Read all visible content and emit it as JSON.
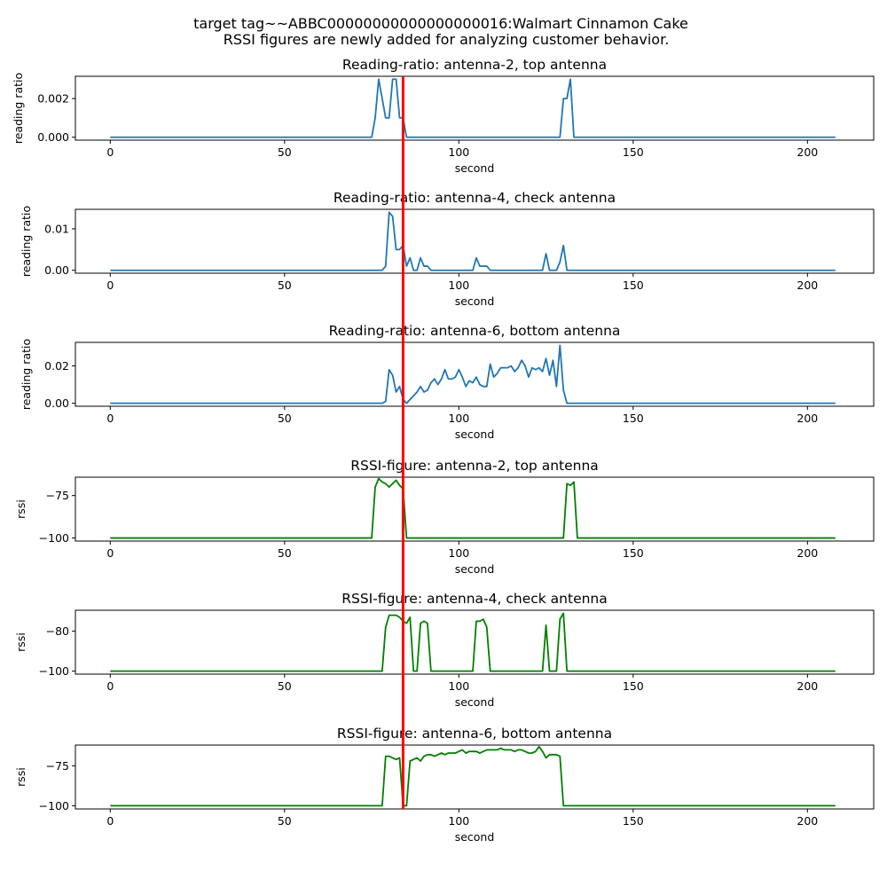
{
  "figure": {
    "title_line1": "target tag~~ABBC00000000000000000016:Walmart Cinnamon Cake",
    "title_line2": "RSSI figures are newly added for analyzing customer behavior.",
    "marker_second": 84,
    "marker_color": "#ff0000"
  },
  "chart_data": [
    {
      "type": "line",
      "title": "Reading-ratio: antenna-2, top antenna",
      "xlabel": "second",
      "ylabel": "reading ratio",
      "xlim": [
        -10,
        219
      ],
      "ylim": [
        -0.00015,
        0.00315
      ],
      "xticks": [
        0,
        50,
        100,
        150,
        200
      ],
      "xtick_labels": [
        "0",
        "50",
        "100",
        "150",
        "200"
      ],
      "yticks": [
        0.0,
        0.002
      ],
      "ytick_labels": [
        "0.000",
        "0.002"
      ],
      "color": "#1f77b4",
      "x_end": 208,
      "baseline": 0,
      "points": [
        [
          75,
          0
        ],
        [
          76,
          0.001
        ],
        [
          77,
          0.003
        ],
        [
          78,
          0.002
        ],
        [
          79,
          0.001
        ],
        [
          80,
          0.001
        ],
        [
          81,
          0.003
        ],
        [
          82,
          0.003
        ],
        [
          83,
          0.001
        ],
        [
          84,
          0.001
        ],
        [
          85,
          0
        ],
        [
          129,
          0
        ],
        [
          130,
          0.002
        ],
        [
          131,
          0.002
        ],
        [
          132,
          0.003
        ],
        [
          133,
          0
        ]
      ]
    },
    {
      "type": "line",
      "title": "Reading-ratio: antenna-4, check antenna",
      "xlabel": "second",
      "ylabel": "reading ratio",
      "xlim": [
        -10,
        219
      ],
      "ylim": [
        -0.0007,
        0.0147
      ],
      "xticks": [
        0,
        50,
        100,
        150,
        200
      ],
      "xtick_labels": [
        "0",
        "50",
        "100",
        "150",
        "200"
      ],
      "yticks": [
        0.0,
        0.01
      ],
      "ytick_labels": [
        "0.00",
        "0.01"
      ],
      "color": "#1f77b4",
      "x_end": 208,
      "baseline": 0,
      "points": [
        [
          78,
          0
        ],
        [
          79,
          0.001
        ],
        [
          80,
          0.014
        ],
        [
          81,
          0.013
        ],
        [
          82,
          0.005
        ],
        [
          83,
          0.005
        ],
        [
          84,
          0.006
        ],
        [
          85,
          0.001
        ],
        [
          86,
          0.003
        ],
        [
          87,
          0
        ],
        [
          88,
          0
        ],
        [
          89,
          0.003
        ],
        [
          90,
          0.001
        ],
        [
          91,
          0.001
        ],
        [
          92,
          0
        ],
        [
          104,
          0
        ],
        [
          105,
          0.003
        ],
        [
          106,
          0.001
        ],
        [
          107,
          0.001
        ],
        [
          108,
          0.001
        ],
        [
          109,
          0
        ],
        [
          124,
          0
        ],
        [
          125,
          0.004
        ],
        [
          126,
          0
        ],
        [
          127,
          0
        ],
        [
          128,
          0
        ],
        [
          129,
          0.002
        ],
        [
          130,
          0.006
        ],
        [
          131,
          0
        ]
      ]
    },
    {
      "type": "line",
      "title": "Reading-ratio: antenna-6, bottom antenna",
      "xlabel": "second",
      "ylabel": "reading ratio",
      "xlim": [
        -10,
        219
      ],
      "ylim": [
        -0.0016,
        0.0326
      ],
      "xticks": [
        0,
        50,
        100,
        150,
        200
      ],
      "xtick_labels": [
        "0",
        "50",
        "100",
        "150",
        "200"
      ],
      "yticks": [
        0.0,
        0.02
      ],
      "ytick_labels": [
        "0.00",
        "0.02"
      ],
      "color": "#1f77b4",
      "x_end": 208,
      "baseline": 0,
      "points": [
        [
          78,
          0
        ],
        [
          79,
          0.001
        ],
        [
          80,
          0.018
        ],
        [
          81,
          0.015
        ],
        [
          82,
          0.006
        ],
        [
          83,
          0.009
        ],
        [
          84,
          0.002
        ],
        [
          85,
          0
        ],
        [
          86,
          0.002
        ],
        [
          87,
          0.004
        ],
        [
          88,
          0.006
        ],
        [
          89,
          0.009
        ],
        [
          90,
          0.006
        ],
        [
          91,
          0.007
        ],
        [
          92,
          0.011
        ],
        [
          93,
          0.013
        ],
        [
          94,
          0.01
        ],
        [
          95,
          0.013
        ],
        [
          96,
          0.018
        ],
        [
          97,
          0.013
        ],
        [
          98,
          0.013
        ],
        [
          99,
          0.014
        ],
        [
          100,
          0.018
        ],
        [
          101,
          0.014
        ],
        [
          102,
          0.009
        ],
        [
          103,
          0.012
        ],
        [
          104,
          0.011
        ],
        [
          105,
          0.014
        ],
        [
          106,
          0.01
        ],
        [
          107,
          0.009
        ],
        [
          108,
          0.009
        ],
        [
          109,
          0.021
        ],
        [
          110,
          0.014
        ],
        [
          111,
          0.016
        ],
        [
          112,
          0.019
        ],
        [
          113,
          0.019
        ],
        [
          114,
          0.019
        ],
        [
          115,
          0.02
        ],
        [
          116,
          0.017
        ],
        [
          117,
          0.019
        ],
        [
          118,
          0.023
        ],
        [
          119,
          0.02
        ],
        [
          120,
          0.014
        ],
        [
          121,
          0.019
        ],
        [
          122,
          0.018
        ],
        [
          123,
          0.019
        ],
        [
          124,
          0.017
        ],
        [
          125,
          0.024
        ],
        [
          126,
          0.015
        ],
        [
          127,
          0.023
        ],
        [
          128,
          0.009
        ],
        [
          129,
          0.031
        ],
        [
          130,
          0.007
        ],
        [
          131,
          0
        ]
      ]
    },
    {
      "type": "line",
      "title": "RSSI-figure: antenna-2, top antenna",
      "xlabel": "second",
      "ylabel": "rssi",
      "xlim": [
        -10,
        219
      ],
      "ylim": [
        -101.8,
        -64.2
      ],
      "xticks": [
        0,
        50,
        100,
        150,
        200
      ],
      "xtick_labels": [
        "0",
        "50",
        "100",
        "150",
        "200"
      ],
      "yticks": [
        -100,
        -75
      ],
      "ytick_labels": [
        "−100",
        "−75"
      ],
      "color": "#008000",
      "x_end": 208,
      "baseline": -100,
      "points": [
        [
          75,
          -100
        ],
        [
          76,
          -70
        ],
        [
          77,
          -65
        ],
        [
          78,
          -67
        ],
        [
          79,
          -68
        ],
        [
          80,
          -70
        ],
        [
          81,
          -68
        ],
        [
          82,
          -66
        ],
        [
          83,
          -69
        ],
        [
          84,
          -71
        ],
        [
          85,
          -100
        ],
        [
          130,
          -100
        ],
        [
          131,
          -68
        ],
        [
          132,
          -69
        ],
        [
          133,
          -67
        ],
        [
          134,
          -100
        ]
      ]
    },
    {
      "type": "line",
      "title": "RSSI-figure: antenna-4, check antenna",
      "xlabel": "second",
      "ylabel": "rssi",
      "xlim": [
        -10,
        219
      ],
      "ylim": [
        -101.5,
        -69.5
      ],
      "xticks": [
        0,
        50,
        100,
        150,
        200
      ],
      "xtick_labels": [
        "0",
        "50",
        "100",
        "150",
        "200"
      ],
      "yticks": [
        -100,
        -80
      ],
      "ytick_labels": [
        "−100",
        "−80"
      ],
      "color": "#008000",
      "x_end": 208,
      "baseline": -100,
      "points": [
        [
          78,
          -100
        ],
        [
          79,
          -78
        ],
        [
          80,
          -72
        ],
        [
          81,
          -72
        ],
        [
          82,
          -72
        ],
        [
          83,
          -73
        ],
        [
          84,
          -75
        ],
        [
          85,
          -76
        ],
        [
          86,
          -73
        ],
        [
          87,
          -100
        ],
        [
          88,
          -100
        ],
        [
          89,
          -76
        ],
        [
          90,
          -75
        ],
        [
          91,
          -76
        ],
        [
          92,
          -100
        ],
        [
          104,
          -100
        ],
        [
          105,
          -75
        ],
        [
          106,
          -75
        ],
        [
          107,
          -74
        ],
        [
          108,
          -78
        ],
        [
          109,
          -100
        ],
        [
          124,
          -100
        ],
        [
          125,
          -77
        ],
        [
          126,
          -100
        ],
        [
          127,
          -100
        ],
        [
          128,
          -100
        ],
        [
          129,
          -74
        ],
        [
          130,
          -71
        ],
        [
          131,
          -100
        ]
      ]
    },
    {
      "type": "line",
      "title": "RSSI-figure: antenna-6, bottom antenna",
      "xlabel": "second",
      "ylabel": "rssi",
      "xlim": [
        -10,
        219
      ],
      "ylim": [
        -102,
        -62
      ],
      "xticks": [
        0,
        50,
        100,
        150,
        200
      ],
      "xtick_labels": [
        "0",
        "50",
        "100",
        "150",
        "200"
      ],
      "yticks": [
        -100,
        -75
      ],
      "ytick_labels": [
        "−100",
        "−75"
      ],
      "color": "#008000",
      "x_end": 208,
      "baseline": -100,
      "points": [
        [
          78,
          -100
        ],
        [
          79,
          -69
        ],
        [
          80,
          -69
        ],
        [
          81,
          -70
        ],
        [
          82,
          -71
        ],
        [
          83,
          -70
        ],
        [
          84,
          -100
        ],
        [
          85,
          -100
        ],
        [
          86,
          -72
        ],
        [
          87,
          -71
        ],
        [
          88,
          -70
        ],
        [
          89,
          -72
        ],
        [
          90,
          -69
        ],
        [
          91,
          -68
        ],
        [
          92,
          -68
        ],
        [
          93,
          -69
        ],
        [
          94,
          -68
        ],
        [
          95,
          -67
        ],
        [
          96,
          -68
        ],
        [
          97,
          -67
        ],
        [
          98,
          -67
        ],
        [
          99,
          -67
        ],
        [
          100,
          -66
        ],
        [
          101,
          -65
        ],
        [
          102,
          -67
        ],
        [
          103,
          -66
        ],
        [
          104,
          -66
        ],
        [
          105,
          -66
        ],
        [
          106,
          -67
        ],
        [
          107,
          -66
        ],
        [
          108,
          -65
        ],
        [
          109,
          -65
        ],
        [
          110,
          -65
        ],
        [
          111,
          -65
        ],
        [
          112,
          -64
        ],
        [
          113,
          -65
        ],
        [
          114,
          -65
        ],
        [
          115,
          -65
        ],
        [
          116,
          -66
        ],
        [
          117,
          -65
        ],
        [
          118,
          -65
        ],
        [
          119,
          -66
        ],
        [
          120,
          -67
        ],
        [
          121,
          -67
        ],
        [
          122,
          -66
        ],
        [
          123,
          -63
        ],
        [
          124,
          -66
        ],
        [
          125,
          -70
        ],
        [
          126,
          -68
        ],
        [
          127,
          -68
        ],
        [
          128,
          -68
        ],
        [
          129,
          -69
        ],
        [
          130,
          -100
        ]
      ]
    }
  ]
}
